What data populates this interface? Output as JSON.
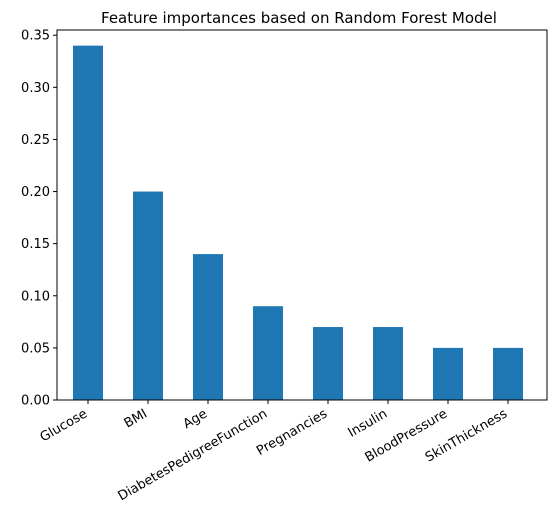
{
  "chart_data": {
    "type": "bar",
    "title": "Feature importances based on Random Forest Model",
    "xlabel": "",
    "ylabel": "",
    "categories": [
      "Glucose",
      "BMI",
      "Age",
      "DiabetesPedigreeFunction",
      "Pregnancies",
      "Insulin",
      "BloodPressure",
      "SkinThickness"
    ],
    "values": [
      0.34,
      0.2,
      0.14,
      0.09,
      0.07,
      0.07,
      0.05,
      0.05
    ],
    "ylim": [
      0,
      0.355
    ],
    "yticks": [
      "0.00",
      "0.05",
      "0.10",
      "0.15",
      "0.20",
      "0.25",
      "0.30",
      "0.35"
    ],
    "bar_color": "#1f77b4",
    "grid": false,
    "legend": "none"
  }
}
